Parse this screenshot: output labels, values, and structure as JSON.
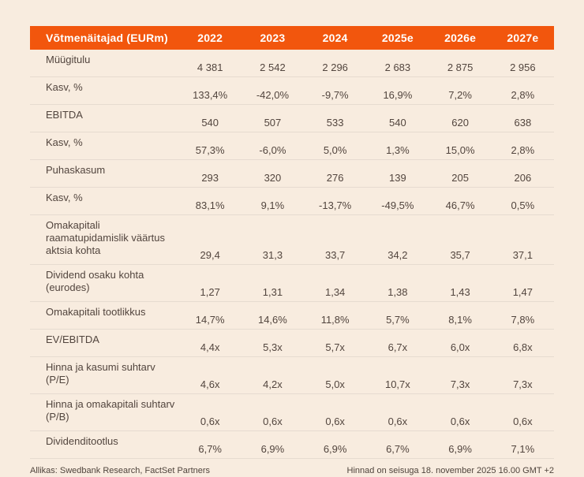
{
  "chart_data": {
    "type": "table",
    "title": "Võtmenäitajad (EURm)",
    "columns": [
      "2022",
      "2023",
      "2024",
      "2025e",
      "2026e",
      "2027e"
    ],
    "rows": [
      {
        "label": "Müügitulu",
        "values": [
          "4 381",
          "2 542",
          "2 296",
          "2 683",
          "2 875",
          "2 956"
        ]
      },
      {
        "label": "Kasv, %",
        "values": [
          "133,4%",
          "-42,0%",
          "-9,7%",
          "16,9%",
          "7,2%",
          "2,8%"
        ]
      },
      {
        "label": "EBITDA",
        "values": [
          "540",
          "507",
          "533",
          "540",
          "620",
          "638"
        ]
      },
      {
        "label": "Kasv, %",
        "values": [
          "57,3%",
          "-6,0%",
          "5,0%",
          "1,3%",
          "15,0%",
          "2,8%"
        ]
      },
      {
        "label": "Puhaskasum",
        "values": [
          "293",
          "320",
          "276",
          "139",
          "205",
          "206"
        ]
      },
      {
        "label": "Kasv, %",
        "values": [
          "83,1%",
          "9,1%",
          "-13,7%",
          "-49,5%",
          "46,7%",
          "0,5%"
        ]
      },
      {
        "label": "Omakapitali raamatupidamislik väärtus aktsia kohta",
        "values": [
          "29,4",
          "31,3",
          "33,7",
          "34,2",
          "35,7",
          "37,1"
        ]
      },
      {
        "label": "Dividend osaku kohta (eurodes)",
        "values": [
          "1,27",
          "1,31",
          "1,34",
          "1,38",
          "1,43",
          "1,47"
        ]
      },
      {
        "label": "Omakapitali tootlikkus",
        "values": [
          "14,7%",
          "14,6%",
          "11,8%",
          "5,7%",
          "8,1%",
          "7,8%"
        ]
      },
      {
        "label": "EV/EBITDA",
        "values": [
          "4,4x",
          "5,3x",
          "5,7x",
          "6,7x",
          "6,0x",
          "6,8x"
        ]
      },
      {
        "label": "Hinna ja kasumi suhtarv (P/E)",
        "values": [
          "4,6x",
          "4,2x",
          "5,0x",
          "10,7x",
          "7,3x",
          "7,3x"
        ]
      },
      {
        "label": "Hinna ja omakapitali suhtarv (P/B)",
        "values": [
          "0,6x",
          "0,6x",
          "0,6x",
          "0,6x",
          "0,6x",
          "0,6x"
        ]
      },
      {
        "label": "Dividenditootlus",
        "values": [
          "6,7%",
          "6,9%",
          "6,9%",
          "6,7%",
          "6,9%",
          "7,1%"
        ]
      }
    ]
  },
  "footer": {
    "source": "Allikas: Swedbank Research, FactSet Partners",
    "price_note": "Hinnad on seisuga 18. november 2025 16.00 GMT +2"
  },
  "colors": {
    "background": "#f8ecdf",
    "header_bg": "#f2560d",
    "header_text": "#ffffff",
    "body_text": "#52453e",
    "divider": "#e6dbd0"
  }
}
